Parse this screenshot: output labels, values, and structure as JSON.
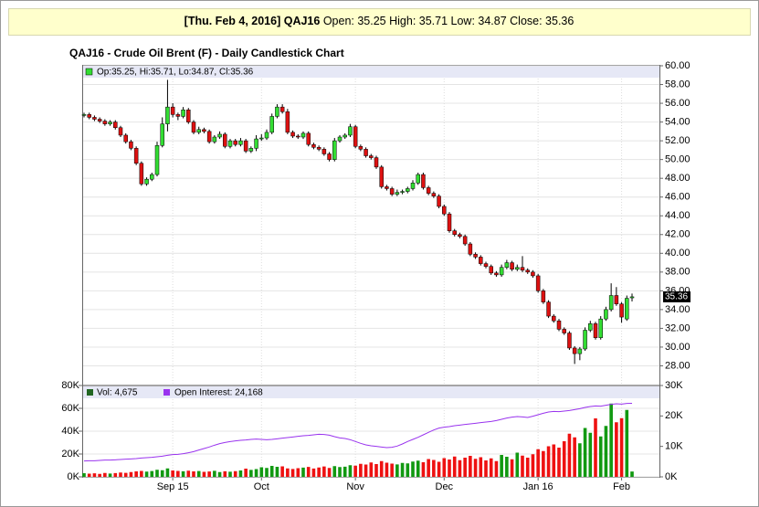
{
  "header": {
    "date_symbol": "[Thu. Feb 4, 2016] QAJ16",
    "quote": "Open: 35.25 High: 35.71 Low: 34.87 Close: 35.36"
  },
  "chart_data": [
    {
      "type": "candlestick",
      "title": "QAJ16 - Crude Oil Brent (F) - Daily Candlestick Chart",
      "legend": "Op:35.25, Hi:35.71, Lo:34.87, Cl:35.36",
      "categories": [
        null,
        null,
        null,
        null,
        null,
        null,
        null,
        null,
        null,
        null,
        null,
        null,
        null,
        null,
        null,
        null,
        null,
        "Sep 15",
        null,
        null,
        null,
        null,
        null,
        null,
        null,
        null,
        null,
        null,
        null,
        null,
        null,
        null,
        null,
        null,
        "Oct",
        null,
        null,
        null,
        null,
        null,
        null,
        null,
        null,
        null,
        null,
        null,
        null,
        null,
        null,
        null,
        null,
        null,
        "Nov",
        null,
        null,
        null,
        null,
        null,
        null,
        null,
        null,
        null,
        null,
        null,
        null,
        null,
        null,
        null,
        null,
        "Dec",
        null,
        null,
        null,
        null,
        null,
        null,
        null,
        null,
        null,
        null,
        null,
        null,
        null,
        null,
        null,
        null,
        null,
        "Jan 16",
        null,
        null,
        null,
        null,
        null,
        null,
        null,
        null,
        null,
        null,
        null,
        null,
        null,
        null,
        null,
        "Feb",
        null,
        null
      ],
      "open": [
        54.7,
        54.8,
        54.5,
        54.3,
        54.1,
        53.8,
        54.0,
        53.4,
        52.6,
        51.9,
        51.2,
        49.6,
        47.4,
        47.9,
        48.4,
        51.5,
        53.8,
        55.6,
        54.8,
        54.6,
        55.3,
        54.0,
        52.9,
        53.2,
        53.0,
        51.9,
        52.4,
        52.7,
        51.4,
        52.0,
        51.6,
        52.0,
        50.9,
        51.2,
        52.2,
        52.3,
        52.9,
        54.6,
        55.6,
        55.1,
        52.9,
        52.5,
        52.4,
        52.8,
        51.6,
        51.3,
        51.1,
        50.6,
        50.0,
        52.0,
        52.4,
        52.6,
        53.5,
        51.4,
        51.1,
        50.4,
        50.2,
        49.2,
        47.1,
        46.9,
        46.3,
        46.5,
        46.6,
        46.9,
        47.5,
        48.4,
        47.0,
        46.4,
        46.1,
        45.0,
        44.2,
        42.4,
        42.0,
        41.8,
        41.0,
        39.9,
        39.6,
        38.9,
        38.6,
        37.9,
        37.7,
        38.5,
        39.0,
        38.3,
        38.5,
        38.2,
        38.0,
        37.6,
        36.0,
        34.8,
        33.3,
        32.8,
        31.9,
        31.5,
        29.9,
        29.3,
        29.8,
        31.8,
        32.5,
        31.0,
        33.0,
        34.0,
        35.5,
        34.6,
        33.0,
        35.25
      ],
      "high": [
        55.0,
        55.0,
        54.7,
        54.5,
        54.3,
        54.2,
        54.2,
        53.6,
        52.8,
        52.1,
        51.4,
        49.8,
        48.1,
        48.6,
        51.9,
        54.5,
        58.5,
        56.0,
        55.0,
        55.6,
        55.5,
        54.2,
        53.5,
        53.4,
        53.2,
        52.6,
        53.0,
        52.9,
        52.2,
        52.2,
        52.3,
        52.2,
        51.4,
        52.6,
        52.7,
        53.2,
        54.9,
        55.9,
        55.9,
        55.4,
        53.1,
        52.7,
        53.0,
        53.0,
        51.8,
        51.5,
        51.3,
        50.8,
        52.3,
        52.6,
        52.8,
        53.8,
        53.7,
        51.6,
        51.3,
        50.6,
        50.4,
        49.4,
        47.3,
        47.1,
        46.8,
        46.8,
        47.1,
        47.8,
        48.6,
        48.6,
        47.2,
        46.6,
        46.3,
        45.2,
        44.4,
        42.6,
        42.2,
        42.0,
        41.2,
        40.1,
        39.8,
        39.1,
        38.8,
        38.1,
        38.8,
        39.3,
        39.2,
        38.8,
        39.7,
        38.4,
        38.2,
        37.8,
        36.2,
        35.0,
        33.5,
        33.0,
        32.1,
        31.7,
        30.1,
        30.0,
        32.1,
        32.8,
        32.7,
        33.3,
        34.3,
        36.8,
        36.4,
        34.8,
        35.5,
        35.71
      ],
      "low": [
        54.5,
        54.3,
        54.1,
        53.9,
        53.6,
        53.6,
        53.2,
        52.4,
        51.7,
        51.0,
        49.4,
        47.2,
        47.2,
        47.7,
        48.2,
        51.3,
        53.0,
        54.5,
        54.2,
        54.4,
        53.8,
        52.7,
        52.7,
        52.8,
        51.7,
        51.7,
        52.2,
        51.2,
        51.2,
        51.4,
        51.4,
        50.7,
        50.7,
        50.9,
        52.0,
        52.1,
        52.7,
        54.4,
        54.9,
        52.7,
        52.3,
        52.2,
        52.2,
        51.4,
        51.1,
        50.9,
        50.4,
        49.8,
        49.8,
        51.8,
        52.2,
        52.4,
        51.2,
        50.9,
        50.2,
        50.0,
        49.0,
        46.9,
        46.7,
        46.1,
        46.1,
        46.3,
        46.4,
        46.7,
        47.3,
        46.8,
        46.2,
        45.9,
        44.8,
        44.0,
        42.2,
        41.8,
        41.6,
        40.8,
        39.7,
        39.4,
        38.7,
        38.4,
        37.7,
        37.5,
        37.5,
        38.3,
        38.1,
        38.1,
        38.0,
        37.8,
        37.4,
        35.8,
        34.6,
        33.1,
        32.6,
        31.7,
        31.3,
        29.7,
        28.2,
        28.6,
        29.6,
        31.6,
        30.8,
        30.8,
        32.8,
        33.8,
        34.4,
        32.6,
        32.8,
        34.87
      ],
      "close": [
        54.8,
        54.5,
        54.3,
        54.1,
        53.8,
        54.0,
        53.4,
        52.6,
        51.9,
        51.2,
        49.6,
        47.4,
        47.9,
        48.4,
        51.5,
        53.8,
        55.6,
        54.8,
        54.6,
        55.3,
        54.0,
        52.9,
        53.2,
        53.0,
        51.9,
        52.4,
        52.7,
        51.4,
        52.0,
        51.6,
        52.0,
        50.9,
        51.2,
        52.2,
        52.3,
        52.9,
        54.6,
        55.6,
        55.1,
        52.9,
        52.5,
        52.4,
        52.8,
        51.6,
        51.3,
        51.1,
        50.6,
        50.0,
        52.0,
        52.4,
        52.6,
        53.5,
        51.4,
        51.1,
        50.4,
        50.2,
        49.2,
        47.1,
        46.9,
        46.3,
        46.5,
        46.6,
        46.9,
        47.5,
        48.4,
        47.0,
        46.4,
        46.1,
        45.0,
        44.2,
        42.4,
        42.0,
        41.8,
        41.0,
        39.9,
        39.6,
        38.9,
        38.6,
        37.9,
        37.7,
        38.5,
        39.0,
        38.3,
        38.5,
        38.2,
        38.0,
        37.6,
        36.0,
        34.8,
        33.3,
        32.8,
        31.9,
        31.5,
        29.9,
        29.3,
        29.8,
        31.8,
        32.5,
        31.0,
        33.0,
        34.0,
        35.5,
        34.6,
        33.2,
        35.2,
        35.36
      ],
      "up_color": "#33dd33",
      "down_color": "#dd1111",
      "ylim": [
        26,
        60
      ],
      "yticks": [
        {
          "value": 28,
          "label": "28.00"
        },
        {
          "value": 30,
          "label": "30.00"
        },
        {
          "value": 32,
          "label": "32.00"
        },
        {
          "value": 34,
          "label": "34.00"
        },
        {
          "value": 36,
          "label": "36.00"
        },
        {
          "value": 38,
          "label": "38.00"
        },
        {
          "value": 40,
          "label": "40.00"
        },
        {
          "value": 42,
          "label": "42.00"
        },
        {
          "value": 44,
          "label": "44.00"
        },
        {
          "value": 46,
          "label": "46.00"
        },
        {
          "value": 48,
          "label": "48.00"
        },
        {
          "value": 50,
          "label": "50.00"
        },
        {
          "value": 52,
          "label": "52.00"
        },
        {
          "value": 54,
          "label": "54.00"
        },
        {
          "value": 56,
          "label": "56.00"
        },
        {
          "value": 58,
          "label": "58.00"
        },
        {
          "value": 60,
          "label": "60.00"
        }
      ],
      "grid": true
    },
    {
      "type": "volume",
      "series": [
        {
          "name": "Vol: 4,675",
          "color": "#226622",
          "up_color": "#119911",
          "down_color": "#ee1111",
          "values": [
            3200,
            2800,
            3100,
            2600,
            3400,
            2900,
            3300,
            3800,
            3500,
            4200,
            4800,
            5200,
            4600,
            5100,
            6200,
            5800,
            7400,
            5600,
            5200,
            4900,
            5400,
            4800,
            5100,
            4400,
            4700,
            5300,
            4200,
            4900,
            4500,
            5000,
            5600,
            7200,
            6100,
            6800,
            8400,
            7800,
            9600,
            8800,
            9200,
            7400,
            6900,
            7600,
            8100,
            8700,
            7300,
            8200,
            9100,
            7800,
            9400,
            8600,
            8900,
            10200,
            9800,
            11400,
            10800,
            12600,
            11200,
            13800,
            12400,
            11600,
            10900,
            12200,
            11800,
            13400,
            14200,
            12800,
            15600,
            14800,
            13200,
            16400,
            15200,
            17800,
            14600,
            16800,
            18400,
            15800,
            17200,
            14400,
            16200,
            13800,
            19200,
            17600,
            15400,
            21200,
            18600,
            16800,
            19800,
            24200,
            22600,
            26800,
            28400,
            25600,
            31200,
            37800,
            34600,
            29400,
            42800,
            38600,
            51200,
            35400,
            44600,
            64200,
            47800,
            51400,
            58600,
            4675
          ]
        },
        {
          "name": "Open Interest: 24,168",
          "color": "#9933ee",
          "axis": "y2",
          "values": [
            5200,
            5300,
            5300,
            5400,
            5500,
            5500,
            5600,
            5700,
            5800,
            5900,
            6000,
            6200,
            6300,
            6400,
            6600,
            6800,
            7100,
            7300,
            7400,
            7600,
            7900,
            8300,
            8800,
            9300,
            9800,
            10400,
            10900,
            11300,
            11600,
            11800,
            12000,
            12100,
            12300,
            12400,
            12300,
            12200,
            12300,
            12500,
            12700,
            12900,
            13100,
            13300,
            13500,
            13600,
            13800,
            14000,
            13900,
            13700,
            13200,
            12800,
            12600,
            12200,
            11600,
            11000,
            10500,
            10200,
            10000,
            9800,
            9600,
            9700,
            10100,
            10800,
            11600,
            12300,
            13000,
            13800,
            14600,
            15400,
            16000,
            16300,
            16500,
            16800,
            17000,
            17200,
            17400,
            17600,
            17800,
            18000,
            18200,
            18500,
            18900,
            19300,
            19600,
            19800,
            19700,
            19500,
            19900,
            20400,
            20900,
            21300,
            21500,
            21400,
            21600,
            21800,
            22100,
            22400,
            22800,
            23100,
            23300,
            23200,
            23500,
            23800,
            24000,
            23900,
            24100,
            24168
          ]
        }
      ],
      "ylim": [
        0,
        80000
      ],
      "yticks": [
        {
          "value": 0,
          "label": "0K"
        },
        {
          "value": 20000,
          "label": "20K"
        },
        {
          "value": 40000,
          "label": "40K"
        },
        {
          "value": 60000,
          "label": "60K"
        },
        {
          "value": 80000,
          "label": "80K"
        }
      ],
      "y2lim": [
        0,
        30000
      ],
      "y2ticks": [
        {
          "value": 0,
          "label": "0K"
        },
        {
          "value": 10000,
          "label": "10K"
        },
        {
          "value": 20000,
          "label": "20K"
        },
        {
          "value": 30000,
          "label": "30K"
        }
      ],
      "grid": true
    }
  ]
}
